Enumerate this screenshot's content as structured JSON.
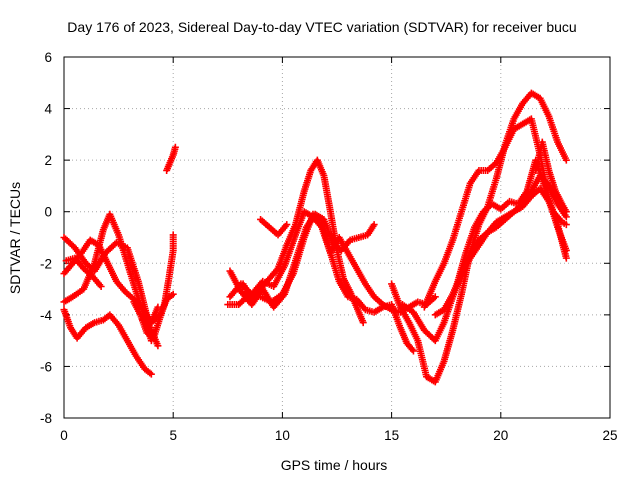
{
  "chart_data": {
    "type": "scatter",
    "title": "Day 176 of 2023, Sidereal Day-to-day VTEC variation (SDTVAR) for receiver bucu",
    "xlabel": "GPS time / hours",
    "ylabel": "SDTVAR / TECUs",
    "xlim": [
      0,
      25
    ],
    "ylim": [
      -8,
      6
    ],
    "xticks": [
      0,
      5,
      10,
      15,
      20,
      25
    ],
    "yticks": [
      -8,
      -6,
      -4,
      -2,
      0,
      2,
      4,
      6
    ],
    "grid": true,
    "marker": "+",
    "marker_color": "#ff0000",
    "series": [
      {
        "x": [
          0.0,
          0.3,
          0.6,
          1.0,
          1.4,
          1.8,
          2.1,
          2.5,
          2.9,
          3.3,
          3.7,
          4.0
        ],
        "values": [
          -3.8,
          -4.5,
          -4.9,
          -4.5,
          -4.3,
          -4.2,
          -4.0,
          -4.4,
          -5.0,
          -5.6,
          -6.1,
          -6.3
        ]
      },
      {
        "x": [
          0.0,
          0.4,
          0.9,
          1.4,
          1.8,
          2.1,
          2.5,
          2.9,
          3.3,
          3.7,
          4.0
        ],
        "values": [
          -3.5,
          -3.3,
          -3.0,
          -2.0,
          -0.7,
          -0.1,
          -0.9,
          -2.0,
          -3.1,
          -4.1,
          -5.0
        ]
      },
      {
        "x": [
          0.0,
          0.4,
          0.8,
          1.2,
          1.6,
          2.0,
          2.4,
          2.8,
          3.2,
          3.6,
          4.0,
          4.3
        ],
        "values": [
          -2.4,
          -2.0,
          -1.6,
          -1.1,
          -1.3,
          -2.0,
          -2.7,
          -3.1,
          -3.4,
          -3.7,
          -4.3,
          -3.7
        ]
      },
      {
        "x": [
          0.0,
          0.5,
          1.0,
          1.4,
          1.9,
          2.4,
          2.9,
          3.4,
          3.9,
          4.3
        ],
        "values": [
          -1.0,
          -1.4,
          -2.0,
          -2.3,
          -1.6,
          -1.2,
          -1.4,
          -2.7,
          -4.4,
          -5.2
        ]
      },
      {
        "x": [
          0.1,
          0.5,
          0.9,
          1.3,
          1.7
        ],
        "values": [
          -1.9,
          -1.8,
          -2.2,
          -2.5,
          -2.9
        ]
      },
      {
        "x": [
          3.2,
          3.5,
          3.8,
          4.1,
          4.4,
          4.6,
          4.8,
          5.0,
          5.0
        ],
        "values": [
          -3.5,
          -4.0,
          -4.7,
          -4.9,
          -4.1,
          -3.6,
          -2.6,
          -1.5,
          -0.9
        ]
      },
      {
        "x": [
          3.6,
          4.0,
          4.4,
          4.7,
          5.0
        ],
        "values": [
          -4.2,
          -4.3,
          -4.0,
          -3.4,
          -3.2
        ]
      },
      {
        "x": [
          4.7,
          4.85,
          5.0,
          5.1
        ],
        "values": [
          1.6,
          1.9,
          2.2,
          2.5
        ]
      },
      {
        "x": [
          7.5,
          8.0,
          8.5,
          9.0,
          9.5,
          10.0,
          10.5,
          11.0,
          11.4,
          11.8,
          12.2,
          12.6,
          13.0,
          13.4,
          13.8,
          14.2,
          14.6,
          15.0,
          15.4,
          15.7,
          16.0
        ],
        "values": [
          -3.6,
          -3.6,
          -3.2,
          -3.3,
          -3.5,
          -3.2,
          -2.4,
          -1.0,
          -0.1,
          -0.4,
          -1.6,
          -2.7,
          -3.3,
          -3.4,
          -3.8,
          -3.9,
          -3.7,
          -3.6,
          -4.5,
          -5.1,
          -5.4
        ]
      },
      {
        "x": [
          7.6,
          8.1,
          8.6,
          9.1,
          9.6,
          10.1,
          10.6,
          11.1,
          11.5,
          11.9,
          12.3,
          12.7,
          13.1,
          13.5,
          13.9,
          14.2
        ],
        "values": [
          -2.3,
          -3.1,
          -3.6,
          -3.0,
          -3.7,
          -3.2,
          -1.9,
          -0.6,
          -0.1,
          -0.3,
          -1.2,
          -1.5,
          -1.1,
          -1.0,
          -0.9,
          -0.5
        ]
      },
      {
        "x": [
          7.6,
          8.1,
          8.6,
          9.1,
          9.6,
          10.1,
          10.6,
          11.0,
          11.4,
          11.8,
          12.2,
          12.6,
          13.0,
          13.4,
          13.8,
          14.2,
          14.6,
          15.0,
          15.4,
          15.8,
          16.2,
          16.6,
          17.0
        ],
        "values": [
          -3.3,
          -2.8,
          -3.2,
          -2.7,
          -2.9,
          -2.1,
          -0.9,
          0.0,
          -0.2,
          -0.6,
          -1.6,
          -1.0,
          -1.6,
          -2.2,
          -2.8,
          -3.3,
          -3.6,
          -3.8,
          -3.9,
          -3.7,
          -3.5,
          -3.6,
          -3.3
        ]
      },
      {
        "x": [
          8.2,
          8.6,
          9.0,
          9.4,
          9.8,
          10.2,
          10.6,
          11.0,
          11.3,
          11.6,
          11.9,
          12.2,
          12.5,
          12.8,
          13.1,
          13.4,
          13.7
        ],
        "values": [
          -2.8,
          -3.4,
          -3.0,
          -2.6,
          -2.2,
          -1.3,
          -0.5,
          0.8,
          1.6,
          2.0,
          1.4,
          0.0,
          -1.5,
          -2.6,
          -3.1,
          -3.7,
          -4.3
        ]
      },
      {
        "x": [
          9.0,
          9.4,
          9.8,
          10.2
        ],
        "values": [
          -0.3,
          -0.6,
          -0.9,
          -0.5
        ]
      },
      {
        "x": [
          15.0,
          15.4,
          15.8,
          16.2,
          16.6,
          17.0,
          17.4,
          17.8,
          18.2,
          18.6,
          19.0,
          19.4,
          19.8,
          20.2,
          20.6,
          21.0,
          21.4,
          21.8,
          22.2,
          22.6,
          23.0
        ],
        "values": [
          -2.8,
          -3.7,
          -4.3,
          -5.0,
          -6.4,
          -6.6,
          -5.8,
          -4.6,
          -3.2,
          -1.6,
          -0.5,
          0.2,
          1.3,
          2.6,
          3.6,
          4.2,
          4.6,
          4.4,
          3.7,
          2.7,
          2.0
        ]
      },
      {
        "x": [
          15.5,
          16.0,
          16.5,
          17.0,
          17.4,
          17.8,
          18.2,
          18.6,
          19.0,
          19.4,
          19.8,
          20.2,
          20.6,
          21.0,
          21.4,
          21.8,
          22.2,
          22.6,
          23.0
        ],
        "values": [
          -3.6,
          -3.9,
          -4.6,
          -5.0,
          -4.3,
          -3.3,
          -2.4,
          -1.6,
          -1.1,
          -0.8,
          -0.6,
          -0.3,
          0.0,
          0.2,
          0.6,
          0.9,
          0.4,
          -0.5,
          -1.8
        ]
      },
      {
        "x": [
          16.5,
          17.0,
          17.4,
          17.8,
          18.2,
          18.6,
          19.0,
          19.4,
          19.8,
          20.2,
          20.6,
          21.0,
          21.4,
          21.8,
          22.2,
          22.6,
          23.0
        ],
        "values": [
          -3.7,
          -2.7,
          -2.0,
          -1.1,
          0.0,
          1.1,
          1.6,
          1.6,
          1.9,
          2.5,
          3.2,
          3.4,
          3.6,
          2.2,
          0.5,
          -0.6,
          -1.5
        ]
      },
      {
        "x": [
          17.0,
          17.4,
          17.8,
          18.2,
          18.6,
          19.0,
          19.4,
          19.8,
          20.2,
          20.6,
          21.0,
          21.4,
          21.8,
          22.2,
          22.6,
          23.0
        ],
        "values": [
          -4.0,
          -3.8,
          -3.2,
          -2.4,
          -1.8,
          -1.3,
          -0.8,
          -0.4,
          -0.2,
          0.0,
          0.3,
          0.8,
          1.4,
          1.0,
          0.3,
          -0.2
        ]
      },
      {
        "x": [
          18.0,
          18.4,
          18.8,
          19.2,
          19.6,
          20.0,
          20.4,
          20.8,
          21.2,
          21.6,
          22.0,
          22.4,
          22.8,
          23.0
        ],
        "values": [
          -2.8,
          -1.6,
          -0.6,
          0.0,
          0.3,
          0.1,
          0.4,
          0.3,
          0.8,
          2.0,
          1.0,
          0.0,
          -0.4,
          -0.5
        ]
      },
      {
        "x": [
          21.6,
          21.9,
          22.2,
          22.5,
          22.8,
          23.0
        ],
        "values": [
          1.6,
          2.7,
          1.6,
          0.8,
          0.3,
          0.0
        ]
      }
    ]
  }
}
